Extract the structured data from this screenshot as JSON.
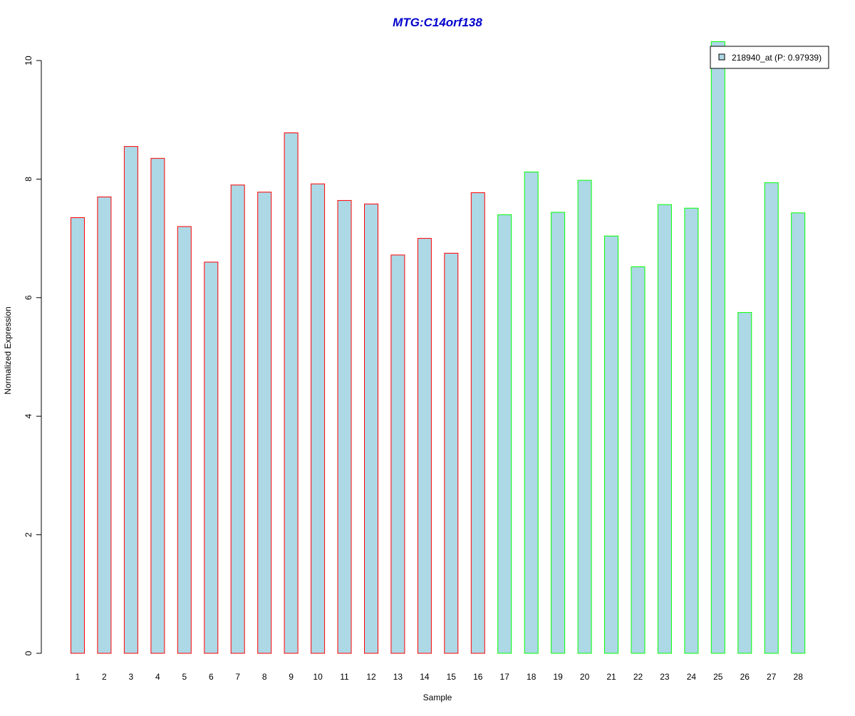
{
  "chart_data": {
    "type": "bar",
    "title": "MTG:C14orf138",
    "xlabel": "Sample",
    "ylabel": "Normalized Expression",
    "ylim": [
      0,
      10
    ],
    "yticks": [
      0,
      2,
      4,
      6,
      8,
      10
    ],
    "grid": false,
    "legend_position": "top-right",
    "categories": [
      "1",
      "2",
      "3",
      "4",
      "5",
      "6",
      "7",
      "8",
      "9",
      "10",
      "11",
      "12",
      "13",
      "14",
      "15",
      "16",
      "17",
      "18",
      "19",
      "20",
      "21",
      "22",
      "23",
      "24",
      "25",
      "26",
      "27",
      "28"
    ],
    "series": [
      {
        "name": "218940_at (P: 0.97939)",
        "values": [
          7.35,
          7.7,
          8.55,
          8.35,
          7.2,
          6.6,
          7.9,
          7.78,
          8.78,
          7.92,
          7.64,
          7.58,
          6.72,
          7.0,
          6.75,
          7.77,
          7.4,
          8.12,
          7.44,
          7.98,
          7.04,
          6.52,
          7.57,
          7.51,
          10.32,
          5.75,
          7.94,
          7.43
        ]
      }
    ],
    "bar_fill": "#ADD8E6",
    "bar_border_colors": [
      "#FF0000",
      "#FF0000",
      "#FF0000",
      "#FF0000",
      "#FF0000",
      "#FF0000",
      "#FF0000",
      "#FF0000",
      "#FF0000",
      "#FF0000",
      "#FF0000",
      "#FF0000",
      "#FF0000",
      "#FF0000",
      "#FF0000",
      "#FF0000",
      "#00FF00",
      "#00FF00",
      "#00FF00",
      "#00FF00",
      "#00FF00",
      "#00FF00",
      "#00FF00",
      "#00FF00",
      "#00FF00",
      "#00FF00",
      "#00FF00",
      "#00FF00"
    ],
    "title_color": "#0000CC"
  }
}
